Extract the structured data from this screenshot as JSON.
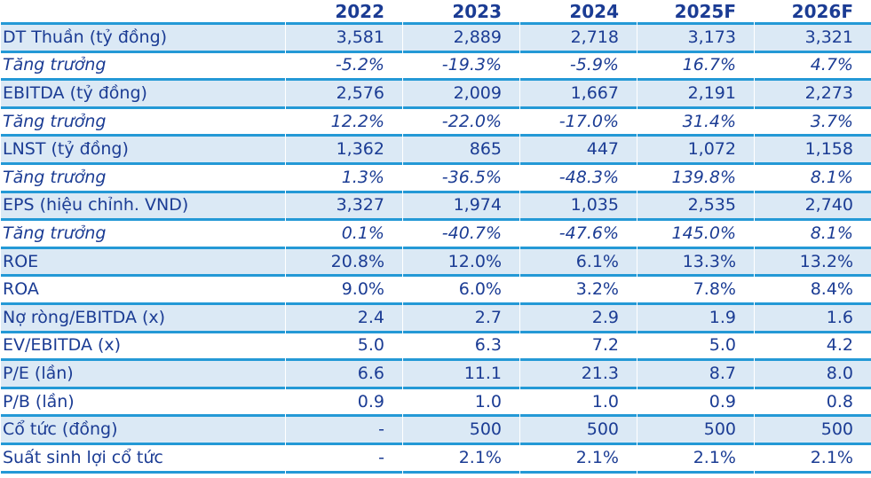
{
  "colors": {
    "text_navy": "#1b3c94",
    "row_band_blue": "#dbe9f5",
    "grid_line_blue": "#2499d6"
  },
  "table": {
    "header": {
      "label": "",
      "years": [
        "2022",
        "2023",
        "2024",
        "2025F",
        "2026F"
      ]
    },
    "rows": [
      {
        "label": "DT Thuần (tỷ đồng)",
        "values": [
          "3,581",
          "2,889",
          "2,718",
          "3,173",
          "3,321"
        ]
      },
      {
        "label": "Tăng trưởng",
        "values": [
          "-5.2%",
          "-19.3%",
          "-5.9%",
          "16.7%",
          "4.7%"
        ]
      },
      {
        "label": "EBITDA (tỷ đồng)",
        "values": [
          "2,576",
          "2,009",
          "1,667",
          "2,191",
          "2,273"
        ]
      },
      {
        "label": "Tăng trưởng",
        "values": [
          "12.2%",
          "-22.0%",
          "-17.0%",
          "31.4%",
          "3.7%"
        ]
      },
      {
        "label": "LNST (tỷ đồng)",
        "values": [
          "1,362",
          "865",
          "447",
          "1,072",
          "1,158"
        ]
      },
      {
        "label": "Tăng trưởng",
        "values": [
          "1.3%",
          "-36.5%",
          "-48.3%",
          "139.8%",
          "8.1%"
        ]
      },
      {
        "label": "EPS (hiệu chỉnh. VND)",
        "values": [
          "3,327",
          "1,974",
          "1,035",
          "2,535",
          "2,740"
        ]
      },
      {
        "label": "Tăng trưởng",
        "values": [
          "0.1%",
          "-40.7%",
          "-47.6%",
          "145.0%",
          "8.1%"
        ]
      },
      {
        "label": "ROE",
        "values": [
          "20.8%",
          "12.0%",
          "6.1%",
          "13.3%",
          "13.2%"
        ]
      },
      {
        "label": "ROA",
        "values": [
          "9.0%",
          "6.0%",
          "3.2%",
          "7.8%",
          "8.4%"
        ]
      },
      {
        "label": "Nợ ròng/EBITDA (x)",
        "values": [
          "2.4",
          "2.7",
          "2.9",
          "1.9",
          "1.6"
        ]
      },
      {
        "label": "EV/EBITDA (x)",
        "values": [
          "5.0",
          "6.3",
          "7.2",
          "5.0",
          "4.2"
        ]
      },
      {
        "label": "P/E (lần)",
        "values": [
          "6.6",
          "11.1",
          "21.3",
          "8.7",
          "8.0"
        ]
      },
      {
        "label": "P/B (lần)",
        "values": [
          "0.9",
          "1.0",
          "1.0",
          "0.9",
          "0.8"
        ]
      },
      {
        "label": "Cổ tức (đồng)",
        "values": [
          "-",
          "500",
          "500",
          "500",
          "500"
        ]
      },
      {
        "label": "Suất sinh lợi cổ tức",
        "values": [
          "-",
          "2.1%",
          "2.1%",
          "2.1%",
          "2.1%"
        ]
      }
    ]
  }
}
